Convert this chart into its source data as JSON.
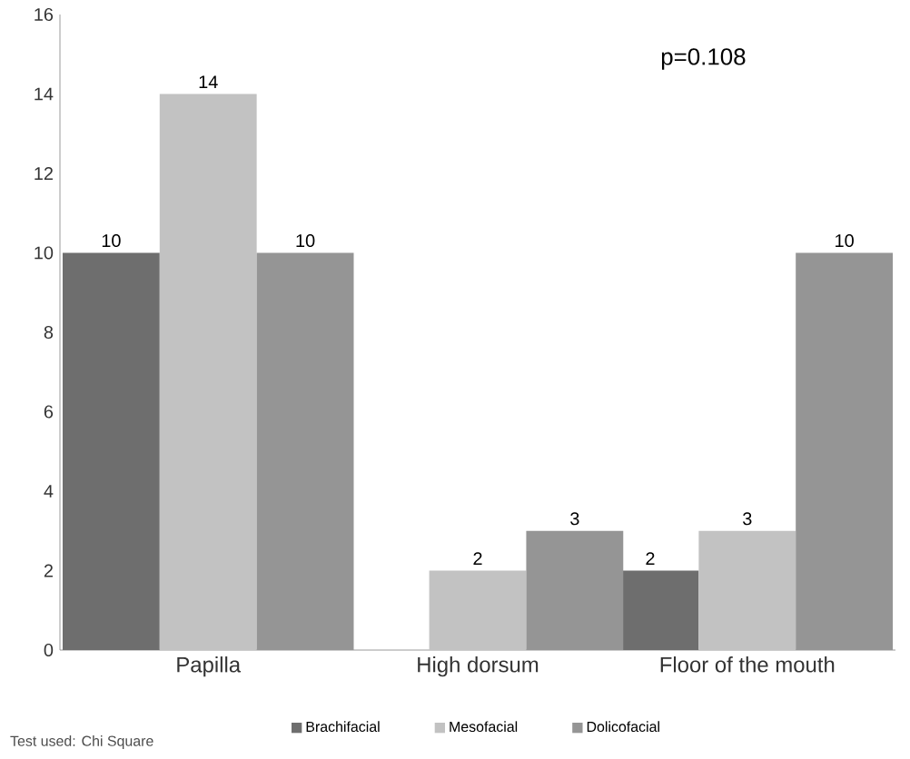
{
  "chart_data": {
    "type": "bar",
    "categories": [
      "Papilla",
      "High dorsum",
      "Floor of the mouth"
    ],
    "series": [
      {
        "name": "Brachifacial",
        "color": "#6e6e6e",
        "values": [
          10,
          null,
          2
        ]
      },
      {
        "name": "Mesofacial",
        "color": "#c2c2c2",
        "values": [
          14,
          2,
          3
        ]
      },
      {
        "name": "Dolicofacial",
        "color": "#959595",
        "values": [
          10,
          3,
          10
        ]
      }
    ],
    "data_labels": true,
    "ylim": [
      0,
      16
    ],
    "yticks": [
      0,
      2,
      4,
      6,
      8,
      10,
      12,
      14,
      16
    ],
    "grid": false,
    "legend": "bottom",
    "annotations": [
      "p=0.108",
      "Test used: Chi Square"
    ]
  }
}
